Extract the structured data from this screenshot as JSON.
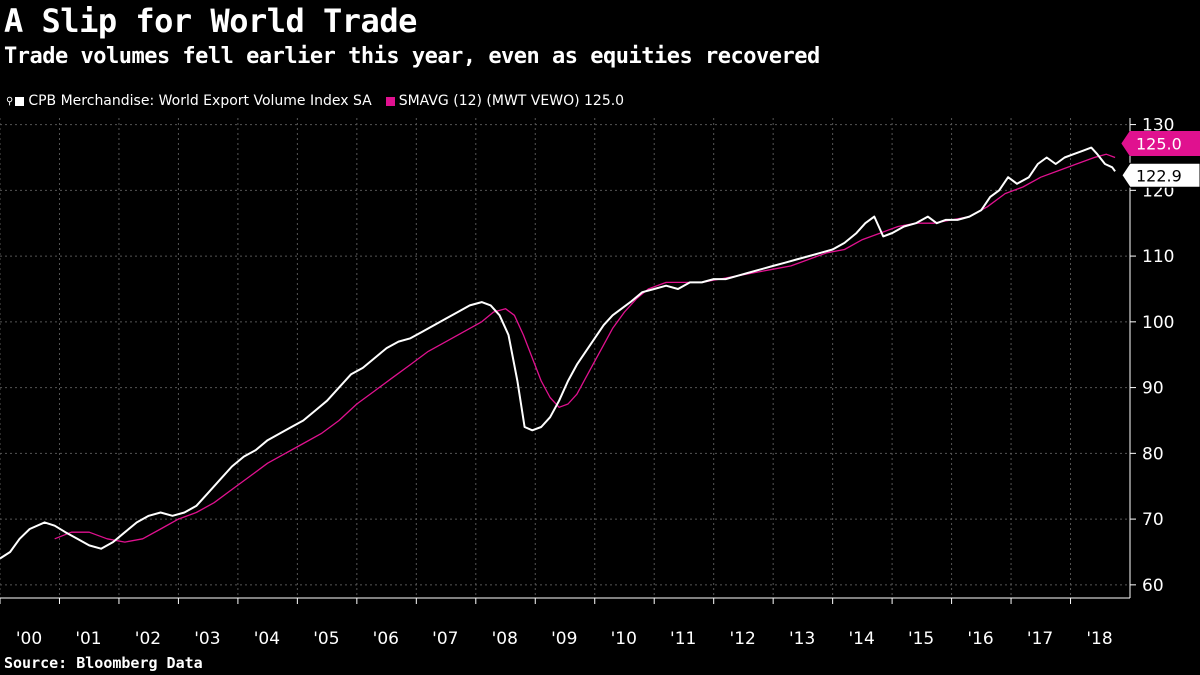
{
  "title": "A Slip for World Trade",
  "subtitle": "Trade volumes fell earlier this year, even as equities recovered",
  "source": "Source: Bloomberg Data",
  "colors": {
    "background": "#000000",
    "series_main": "#ffffff",
    "series_avg": "#e0118f",
    "grid": "#555555"
  },
  "legend": {
    "pin_icon": "pin-icon",
    "items": [
      {
        "label": "CPB Merchandise: World Export Volume Index SA",
        "color": "#ffffff"
      },
      {
        "label": "SMAVG (12)  (MWT VEWO) 125.0",
        "color": "#e0118f"
      }
    ]
  },
  "chart_data": {
    "type": "line",
    "title": "A Slip for World Trade",
    "xlabel": "",
    "ylabel": "",
    "ylim": [
      58,
      131
    ],
    "y_ticks": [
      60,
      70,
      80,
      90,
      100,
      110,
      120,
      130
    ],
    "y_tick_labels": [
      "60",
      "70",
      "80",
      "90",
      "100",
      "110",
      "120",
      "130"
    ],
    "x_range": [
      2000.0,
      2019.0
    ],
    "x_ticks": [
      2000,
      2001,
      2002,
      2003,
      2004,
      2005,
      2006,
      2007,
      2008,
      2009,
      2010,
      2011,
      2012,
      2013,
      2014,
      2015,
      2016,
      2017,
      2018
    ],
    "x_tick_labels": [
      "'00",
      "'01",
      "'02",
      "'03",
      "'04",
      "'05",
      "'06",
      "'07",
      "'08",
      "'09",
      "'10",
      "'11",
      "'12",
      "'13",
      "'14",
      "'15",
      "'16",
      "'17",
      "'18"
    ],
    "grid": true,
    "series": [
      {
        "name": "CPB Merchandise: World Export Volume Index SA",
        "color": "#ffffff",
        "last_value_label": "122.9",
        "points": [
          [
            2000.0,
            64.0
          ],
          [
            2000.17,
            65.0
          ],
          [
            2000.33,
            67.0
          ],
          [
            2000.5,
            68.5
          ],
          [
            2000.75,
            69.5
          ],
          [
            2000.92,
            69.0
          ],
          [
            2001.1,
            68.0
          ],
          [
            2001.3,
            67.0
          ],
          [
            2001.5,
            66.0
          ],
          [
            2001.7,
            65.5
          ],
          [
            2001.9,
            66.5
          ],
          [
            2002.1,
            68.0
          ],
          [
            2002.3,
            69.5
          ],
          [
            2002.5,
            70.5
          ],
          [
            2002.7,
            71.0
          ],
          [
            2002.9,
            70.5
          ],
          [
            2003.1,
            71.0
          ],
          [
            2003.3,
            72.0
          ],
          [
            2003.5,
            74.0
          ],
          [
            2003.7,
            76.0
          ],
          [
            2003.9,
            78.0
          ],
          [
            2004.1,
            79.5
          ],
          [
            2004.3,
            80.5
          ],
          [
            2004.5,
            82.0
          ],
          [
            2004.7,
            83.0
          ],
          [
            2004.9,
            84.0
          ],
          [
            2005.1,
            85.0
          ],
          [
            2005.3,
            86.5
          ],
          [
            2005.5,
            88.0
          ],
          [
            2005.7,
            90.0
          ],
          [
            2005.9,
            92.0
          ],
          [
            2006.1,
            93.0
          ],
          [
            2006.3,
            94.5
          ],
          [
            2006.5,
            96.0
          ],
          [
            2006.7,
            97.0
          ],
          [
            2006.9,
            97.5
          ],
          [
            2007.1,
            98.5
          ],
          [
            2007.3,
            99.5
          ],
          [
            2007.5,
            100.5
          ],
          [
            2007.7,
            101.5
          ],
          [
            2007.9,
            102.5
          ],
          [
            2008.1,
            103.0
          ],
          [
            2008.25,
            102.5
          ],
          [
            2008.4,
            101.0
          ],
          [
            2008.55,
            98.0
          ],
          [
            2008.7,
            91.0
          ],
          [
            2008.82,
            84.0
          ],
          [
            2008.95,
            83.5
          ],
          [
            2009.1,
            84.0
          ],
          [
            2009.25,
            85.5
          ],
          [
            2009.4,
            88.0
          ],
          [
            2009.55,
            91.0
          ],
          [
            2009.7,
            93.5
          ],
          [
            2009.85,
            95.5
          ],
          [
            2010.0,
            97.5
          ],
          [
            2010.15,
            99.5
          ],
          [
            2010.3,
            101.0
          ],
          [
            2010.45,
            102.0
          ],
          [
            2010.6,
            103.0
          ],
          [
            2010.8,
            104.5
          ],
          [
            2011.0,
            105.0
          ],
          [
            2011.2,
            105.5
          ],
          [
            2011.4,
            105.0
          ],
          [
            2011.6,
            106.0
          ],
          [
            2011.8,
            106.0
          ],
          [
            2012.0,
            106.5
          ],
          [
            2012.2,
            106.5
          ],
          [
            2012.4,
            107.0
          ],
          [
            2012.6,
            107.5
          ],
          [
            2012.8,
            108.0
          ],
          [
            2013.0,
            108.5
          ],
          [
            2013.2,
            109.0
          ],
          [
            2013.4,
            109.5
          ],
          [
            2013.6,
            110.0
          ],
          [
            2013.8,
            110.5
          ],
          [
            2014.0,
            111.0
          ],
          [
            2014.2,
            112.0
          ],
          [
            2014.4,
            113.5
          ],
          [
            2014.55,
            115.0
          ],
          [
            2014.7,
            116.0
          ],
          [
            2014.85,
            113.0
          ],
          [
            2015.0,
            113.5
          ],
          [
            2015.2,
            114.5
          ],
          [
            2015.4,
            115.0
          ],
          [
            2015.6,
            116.0
          ],
          [
            2015.75,
            115.0
          ],
          [
            2015.9,
            115.5
          ],
          [
            2016.1,
            115.5
          ],
          [
            2016.3,
            116.0
          ],
          [
            2016.5,
            117.0
          ],
          [
            2016.65,
            119.0
          ],
          [
            2016.8,
            120.0
          ],
          [
            2016.95,
            122.0
          ],
          [
            2017.1,
            121.0
          ],
          [
            2017.3,
            122.0
          ],
          [
            2017.45,
            124.0
          ],
          [
            2017.6,
            125.0
          ],
          [
            2017.75,
            124.0
          ],
          [
            2017.9,
            125.0
          ],
          [
            2018.05,
            125.5
          ],
          [
            2018.2,
            126.0
          ],
          [
            2018.35,
            126.5
          ],
          [
            2018.45,
            125.5
          ],
          [
            2018.58,
            124.0
          ],
          [
            2018.7,
            123.5
          ],
          [
            2018.75,
            122.9
          ]
        ]
      },
      {
        "name": "SMAVG (12)  (MWT VEWO) 125.0",
        "color": "#e0118f",
        "last_value_label": "125.0",
        "points": [
          [
            2000.92,
            67.0
          ],
          [
            2001.2,
            68.0
          ],
          [
            2001.5,
            68.0
          ],
          [
            2001.8,
            67.0
          ],
          [
            2002.1,
            66.5
          ],
          [
            2002.4,
            67.0
          ],
          [
            2002.7,
            68.5
          ],
          [
            2003.0,
            70.0
          ],
          [
            2003.3,
            71.0
          ],
          [
            2003.6,
            72.5
          ],
          [
            2003.9,
            74.5
          ],
          [
            2004.2,
            76.5
          ],
          [
            2004.5,
            78.5
          ],
          [
            2004.8,
            80.0
          ],
          [
            2005.1,
            81.5
          ],
          [
            2005.4,
            83.0
          ],
          [
            2005.7,
            85.0
          ],
          [
            2006.0,
            87.5
          ],
          [
            2006.3,
            89.5
          ],
          [
            2006.6,
            91.5
          ],
          [
            2006.9,
            93.5
          ],
          [
            2007.2,
            95.5
          ],
          [
            2007.5,
            97.0
          ],
          [
            2007.8,
            98.5
          ],
          [
            2008.1,
            100.0
          ],
          [
            2008.3,
            101.5
          ],
          [
            2008.5,
            102.0
          ],
          [
            2008.65,
            101.0
          ],
          [
            2008.8,
            98.0
          ],
          [
            2008.95,
            94.5
          ],
          [
            2009.1,
            91.0
          ],
          [
            2009.25,
            88.5
          ],
          [
            2009.4,
            87.0
          ],
          [
            2009.55,
            87.5
          ],
          [
            2009.7,
            89.0
          ],
          [
            2009.85,
            91.5
          ],
          [
            2010.0,
            94.0
          ],
          [
            2010.15,
            96.5
          ],
          [
            2010.3,
            99.0
          ],
          [
            2010.5,
            101.5
          ],
          [
            2010.7,
            103.5
          ],
          [
            2010.9,
            105.0
          ],
          [
            2011.2,
            106.0
          ],
          [
            2011.5,
            106.0
          ],
          [
            2011.8,
            106.0
          ],
          [
            2012.1,
            106.5
          ],
          [
            2012.4,
            107.0
          ],
          [
            2012.7,
            107.5
          ],
          [
            2013.0,
            108.0
          ],
          [
            2013.3,
            108.5
          ],
          [
            2013.6,
            109.5
          ],
          [
            2013.9,
            110.5
          ],
          [
            2014.2,
            111.0
          ],
          [
            2014.5,
            112.5
          ],
          [
            2014.8,
            113.5
          ],
          [
            2015.1,
            114.5
          ],
          [
            2015.4,
            115.0
          ],
          [
            2015.7,
            115.0
          ],
          [
            2016.0,
            115.5
          ],
          [
            2016.3,
            116.0
          ],
          [
            2016.6,
            117.5
          ],
          [
            2016.9,
            119.5
          ],
          [
            2017.2,
            120.5
          ],
          [
            2017.5,
            122.0
          ],
          [
            2017.8,
            123.0
          ],
          [
            2018.1,
            124.0
          ],
          [
            2018.4,
            125.0
          ],
          [
            2018.6,
            125.5
          ],
          [
            2018.75,
            125.0
          ]
        ]
      }
    ]
  }
}
